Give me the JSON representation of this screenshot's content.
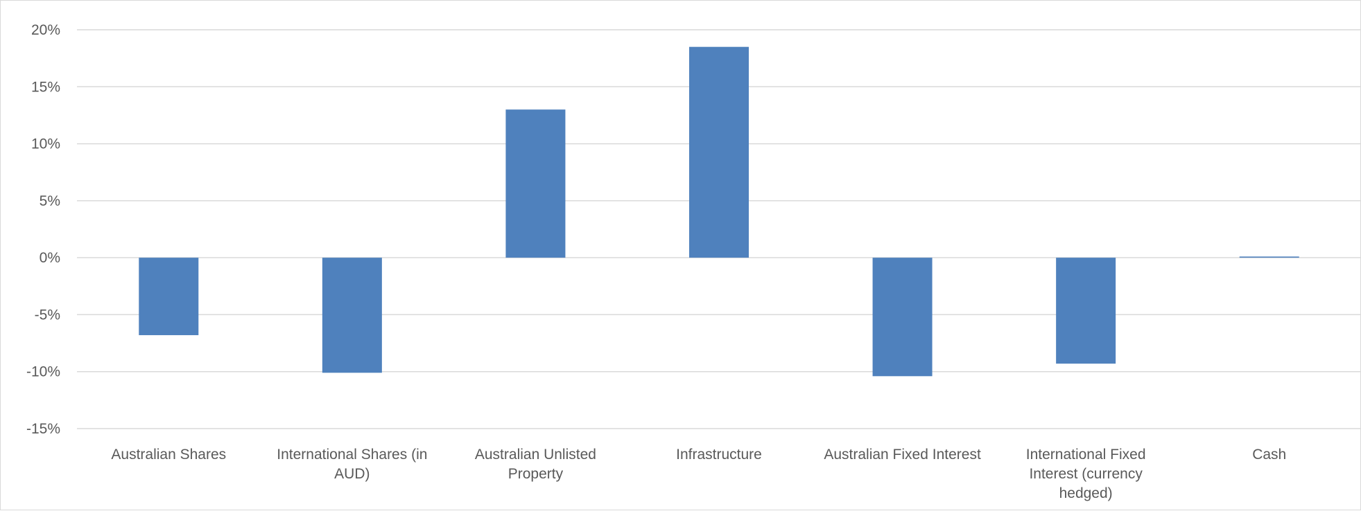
{
  "chart_data": {
    "type": "bar",
    "title": "",
    "xlabel": "",
    "ylabel": "",
    "categories": [
      [
        "Australian Shares"
      ],
      [
        "International Shares (in",
        "AUD)"
      ],
      [
        "Australian Unlisted",
        "Property"
      ],
      [
        "Infrastructure"
      ],
      [
        "Australian Fixed Interest"
      ],
      [
        "International Fixed",
        "Interest (currency",
        "hedged)"
      ],
      [
        "Cash"
      ]
    ],
    "values": [
      -6.8,
      -10.1,
      13.0,
      18.5,
      -10.4,
      -9.3,
      0.1
    ],
    "value_format": "percent",
    "ylim": [
      -15,
      20
    ],
    "yticks": [
      20,
      15,
      10,
      5,
      0,
      -5,
      -10,
      -15
    ],
    "ytick_labels": [
      "20%",
      "15%",
      "10%",
      "5%",
      "0%",
      "-5%",
      "-10%",
      "-15%"
    ],
    "grid": true,
    "legend": false,
    "colors": {
      "bar": "#4f81bd",
      "grid": "#d9d9d9",
      "text": "#595959",
      "frame": "#d9d9d9"
    }
  }
}
